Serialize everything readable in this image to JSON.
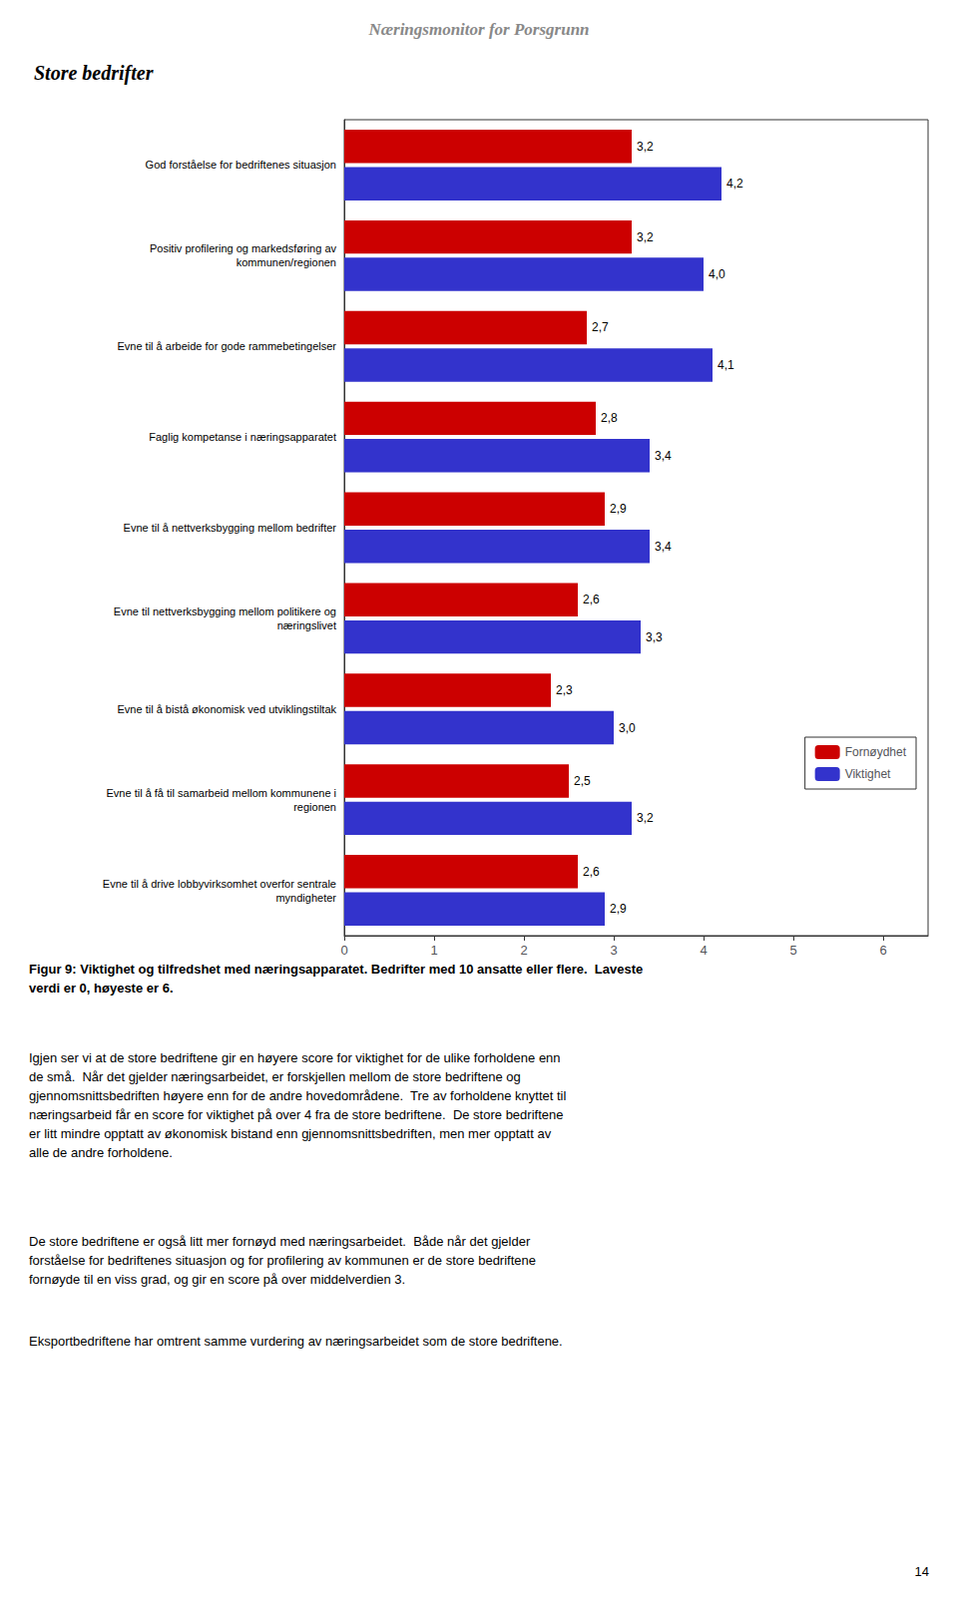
{
  "chart_data": {
    "type": "bar",
    "orientation": "horizontal",
    "title": "Næringsmonitor for Porsgrunn",
    "subtitle": "Store bedrifter",
    "categories": [
      "God forståelse for bedriftenes situasjon",
      "Positiv profilering og markedsføring av\nkommunen/regionen",
      "Evne til å arbeide for gode rammebetingelser",
      "Faglig kompetanse i næringsapparatet",
      "Evne til å nettverksbygging mellom bedrifter",
      "Evne til nettverksbygging mellom politikere og\nnæringslivet",
      "Evne til å bistå økonomisk ved utviklingstiltak",
      "Evne til å få til samarbeid mellom kommunene i\nregionen",
      "Evne til å drive lobbyvirksomhet overfor sentrale\nmyndigheter"
    ],
    "series": [
      {
        "name": "Fornøydhet",
        "color": "#CC0000",
        "values": [
          3.2,
          3.2,
          2.7,
          2.8,
          2.9,
          2.6,
          2.3,
          2.5,
          2.6
        ],
        "value_labels": [
          "3,2",
          "3,2",
          "2,7",
          "2,8",
          "2,9",
          "2,6",
          "2,3",
          "2,5",
          "2,6"
        ]
      },
      {
        "name": "Viktighet",
        "color": "#3333CC",
        "values": [
          4.2,
          4.0,
          4.1,
          3.4,
          3.4,
          3.3,
          3.0,
          3.2,
          2.9
        ],
        "value_labels": [
          "4,2",
          "4,0",
          "4,1",
          "3,4",
          "3,4",
          "3,3",
          "3,0",
          "3,2",
          "2,9"
        ]
      }
    ],
    "xlim": [
      0,
      6.5
    ],
    "xticks": [
      0,
      1,
      2,
      3,
      4,
      5,
      6
    ],
    "grid": false,
    "legend": "lower right",
    "data_labels": true,
    "annotations": [
      "Figur 9: Viktighet og tilfredshet med næringsapparatet. Bedrifter med 10 ansatte eller flere.  Laveste\nverdi er 0, høyeste er 6.",
      "Igjen ser vi at de store bedriftene gir en høyere score for viktighet for de ulike forholdene enn\nde små.  Når det gjelder næringsarbeidet, er forskjellen mellom de store bedriftene og\ngjennomsnitts­bedriften høyere enn for de andre hoved­områdene.  Tre av forholdene knyttet til\nnæringsarbeid får en score for viktighet på over 4 fra de store bedriftene.  De store bedriftene\ner litt mindre opptatt av øko­nomisk bistand enn gjennomsnitts­bedriften, men mer opptatt av\nalle de andre forholdene.",
      "De store bedriftene er også litt mer fornøyd med næringsarbeidet.  Både når det gjelder\nforståelse for bedriftenes situasjon og for profilering av kommunen er de store bedriftene\nfornøyde til en viss grad, og gir en score på over middelverdien 3.",
      "Eksportbedriftene har omtrent samme vurdering av næringsarbeidet som de store bedriftene.",
      "14"
    ]
  }
}
